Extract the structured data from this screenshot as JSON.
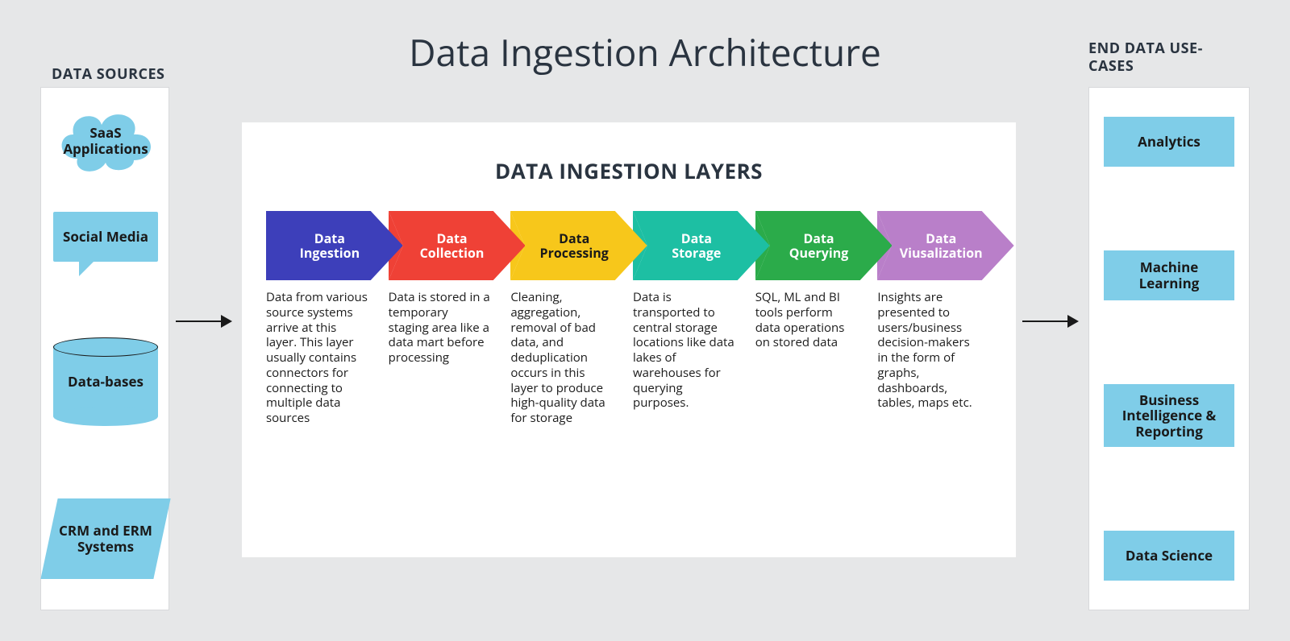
{
  "colors": {
    "page_bg": "#e6e7e8",
    "panel_bg": "#ffffff",
    "panel_border": "#d8d9db",
    "text_primary": "#2a3440",
    "text_body": "#1a1a1a",
    "source_shape_fill": "#7fcde8",
    "connector_arrow": "#1a1a1a"
  },
  "typography": {
    "main_title_size": 46,
    "section_title_size": 18,
    "center_title_size": 26,
    "arrow_label_size": 16,
    "desc_size": 15,
    "box_label_size": 17
  },
  "main_title": "Data Ingestion Architecture",
  "sources": {
    "title": "DATA SOURCES",
    "items": [
      {
        "shape": "cloud",
        "label": "SaaS Applications"
      },
      {
        "shape": "speech",
        "label": "Social Media"
      },
      {
        "shape": "cylinder",
        "label": "Data-bases"
      },
      {
        "shape": "parallelogram",
        "label": "CRM and ERM Systems"
      }
    ]
  },
  "layers": {
    "title": "DATA INGESTION LAYERS",
    "arrows": [
      {
        "label": "Data Ingestion",
        "fill": "#3d3fba",
        "text": "white",
        "desc": "Data from various source systems arrive at this layer. This layer usually contains connectors for connecting to multiple data sources"
      },
      {
        "label": "Data Collection",
        "fill": "#ef4136",
        "text": "white",
        "desc": "Data is stored in a temporary staging area like a data mart before processing"
      },
      {
        "label": "Data Processing",
        "fill": "#f7c71b",
        "text": "black",
        "desc": "Cleaning, aggregation, removal of bad data, and deduplication occurs in this layer to produce high-quality data for storage"
      },
      {
        "label": "Data Storage",
        "fill": "#1dbfa3",
        "text": "white",
        "desc": "Data is transported to central storage locations like data lakes of warehouses for querying purposes."
      },
      {
        "label": "Data Querying",
        "fill": "#2bab4a",
        "text": "white",
        "desc": "SQL, ML and BI tools perform data operations on stored data"
      },
      {
        "label": "Data Viusalization",
        "fill": "#b97fc9",
        "text": "white",
        "desc": "Insights are presented to users/business decision-makers in the form of graphs, dashboards, tables, maps etc."
      }
    ]
  },
  "usecases": {
    "title": "END DATA USE-CASES",
    "items": [
      "Analytics",
      "Machine Learning",
      "Business Intelligence & Reporting",
      "Data Science"
    ]
  }
}
